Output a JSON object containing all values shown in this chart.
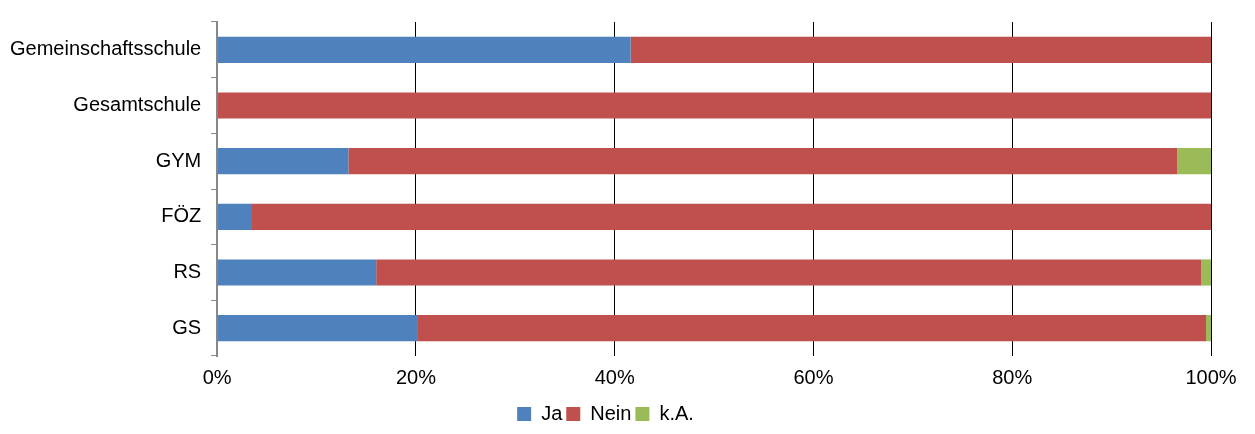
{
  "chart_data": {
    "type": "bar",
    "orientation": "horizontal",
    "stacked": true,
    "categories": [
      "Gemeinschaftsschule",
      "Gesamtschule",
      "GYM",
      "FÖZ",
      "RS",
      "GS"
    ],
    "series": [
      {
        "name": "Ja",
        "color": "#4f81bd",
        "values": [
          41.6,
          0,
          13.2,
          3.5,
          16.0,
          20.2
        ]
      },
      {
        "name": "Nein",
        "color": "#c0504d",
        "values": [
          58.4,
          100,
          83.4,
          96.5,
          83.0,
          79.3
        ]
      },
      {
        "name": "k.A.",
        "color": "#9bbb59",
        "values": [
          0,
          0,
          3.4,
          0,
          1.0,
          0.5
        ]
      }
    ],
    "xlim": [
      0,
      100
    ],
    "xticks": [
      {
        "value": 0,
        "label": "0%"
      },
      {
        "value": 20,
        "label": "20%"
      },
      {
        "value": 40,
        "label": "40%"
      },
      {
        "value": 60,
        "label": "60%"
      },
      {
        "value": 80,
        "label": "80%"
      },
      {
        "value": 100,
        "label": "100%"
      }
    ],
    "grid": "x",
    "legend": "bottom"
  }
}
